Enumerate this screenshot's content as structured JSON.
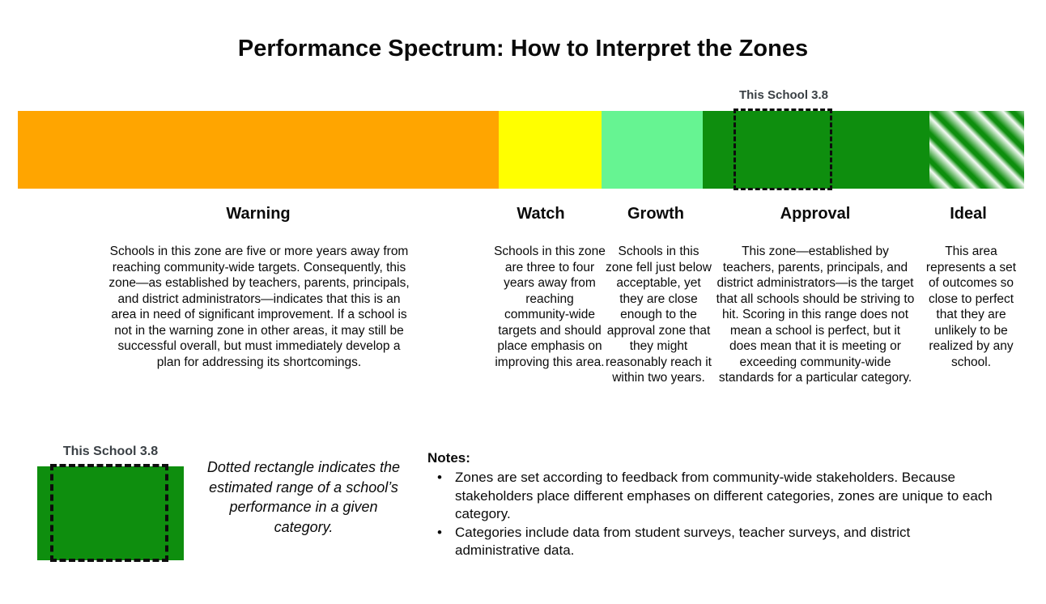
{
  "title": "Performance Spectrum: How to Interpret the Zones",
  "marker": {
    "label": "This School 3.8",
    "style": "dotted-rectangle"
  },
  "zones": [
    {
      "id": "warning",
      "label": "Warning",
      "color": "#FFA500",
      "pattern": "solid",
      "description": "Schools in this zone are five or more years away from reaching community-wide targets. Consequently, this zone—as established by teachers, parents, principals, and district administrators—indicates that this is an area in need of significant improvement. If a school is not in the warning zone in other areas, it may still be successful overall, but must immediately develop a plan for addressing its shortcomings."
    },
    {
      "id": "watch",
      "label": "Watch",
      "color": "#FFFF00",
      "pattern": "solid",
      "description": "Schools in this zone are three to four years away from reaching community-wide targets and should place emphasis on improving this area."
    },
    {
      "id": "growth",
      "label": "Growth",
      "color": "#66F492",
      "pattern": "solid",
      "description": "Schools in this zone fell just below acceptable, yet they are close enough to the approval zone that they might reasonably reach it within two years."
    },
    {
      "id": "approval",
      "label": "Approval",
      "color": "#0E8E0E",
      "pattern": "solid",
      "description": "This zone—established by teachers, parents, principals, and district administrators—is the target that all schools should be striving to hit. Scoring in this range does not mean a school is perfect, but it does mean that it is meeting or exceeding community-wide standards for a particular category."
    },
    {
      "id": "ideal",
      "label": "Ideal",
      "color": "#0E8E0E",
      "pattern": "diagonal-stripes",
      "stripe_alt_color": "#f4faf4",
      "description": "This area represents a set of outcomes so close to perfect that they are unlikely to be realized by any school."
    }
  ],
  "legend": {
    "label": "This School 3.8",
    "swatch_color": "#0E8E0E",
    "caption": "Dotted rectangle indicates the estimated range of a school’s performance in a given category."
  },
  "notes": {
    "heading": "Notes:",
    "items": [
      "Zones are set according to feedback from community-wide stakeholders. Because stakeholders place different emphases on different categories, zones are unique to each category.",
      "Categories include data from student surveys, teacher surveys, and district administrative data."
    ]
  }
}
